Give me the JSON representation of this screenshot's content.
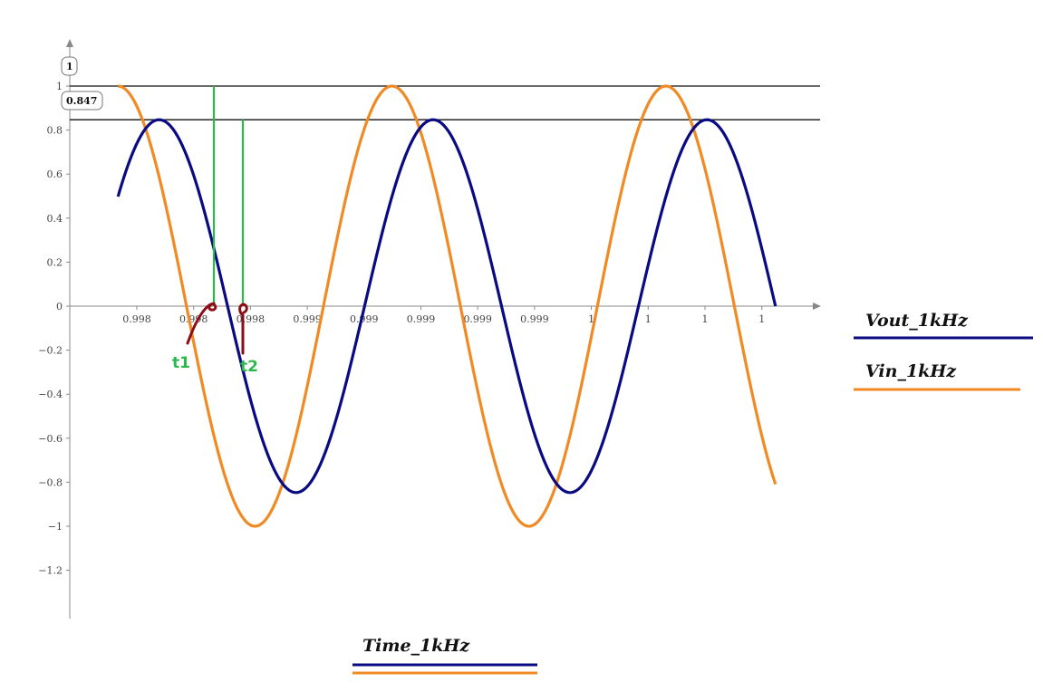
{
  "chart_data": {
    "type": "line",
    "xlabel": "Time_1kHz",
    "ylabel": "",
    "x_tick_labels": [
      "0.998",
      "0.998",
      "0.998",
      "0.999",
      "0.999",
      "0.999",
      "0.999",
      "0.999",
      "1",
      "1",
      "1",
      "1"
    ],
    "y_ticks": [
      1,
      0.8,
      0.6,
      0.4,
      0.2,
      0,
      -0.2,
      -0.4,
      -0.6,
      -0.8,
      -1,
      -1.2
    ],
    "y_tick_labels": [
      "1",
      "0.8",
      "0.6",
      "0.4",
      "0.2",
      "0",
      "−0.2",
      "−0.4",
      "−0.6",
      "−0.8",
      "−1",
      "−1.2"
    ],
    "ylim": [
      -1.4,
      1.2
    ],
    "x_domain_ms": [
      997.7,
      1000.3
    ],
    "series": [
      {
        "name": "Vout_1kHz",
        "color": "#0a0a82",
        "amplitude": 0.847,
        "period_ms": 1,
        "peak_at_ms": 997.95,
        "x_range_ms": [
          997.8,
          1000.2
        ]
      },
      {
        "name": "Vin_1kHz",
        "color": "#f08a24",
        "amplitude": 1,
        "period_ms": 1,
        "peak_at_ms": 997.8,
        "x_range_ms": [
          997.8,
          1000.2
        ]
      }
    ],
    "markers": [
      {
        "label": "1",
        "value": 1
      },
      {
        "label": "0.847",
        "value": 0.847
      }
    ],
    "annotations": [
      {
        "label": "t1",
        "color": "#2db84d"
      },
      {
        "label": "t2",
        "color": "#2db84d"
      }
    ],
    "grid": false
  },
  "legend": {
    "y_series": [
      {
        "name": "Vout_1kHz",
        "color": "#0a0a82"
      },
      {
        "name": "Vin_1kHz",
        "color": "#f08a24"
      }
    ],
    "x_label": "Time_1kHz",
    "x_colors": [
      "#0a0a82",
      "#f08a24"
    ]
  },
  "colors": {
    "axis": "#888888",
    "marker_line": "#111111",
    "guide_line": "#2db84d",
    "hand_annotation": "#8b0d16"
  }
}
